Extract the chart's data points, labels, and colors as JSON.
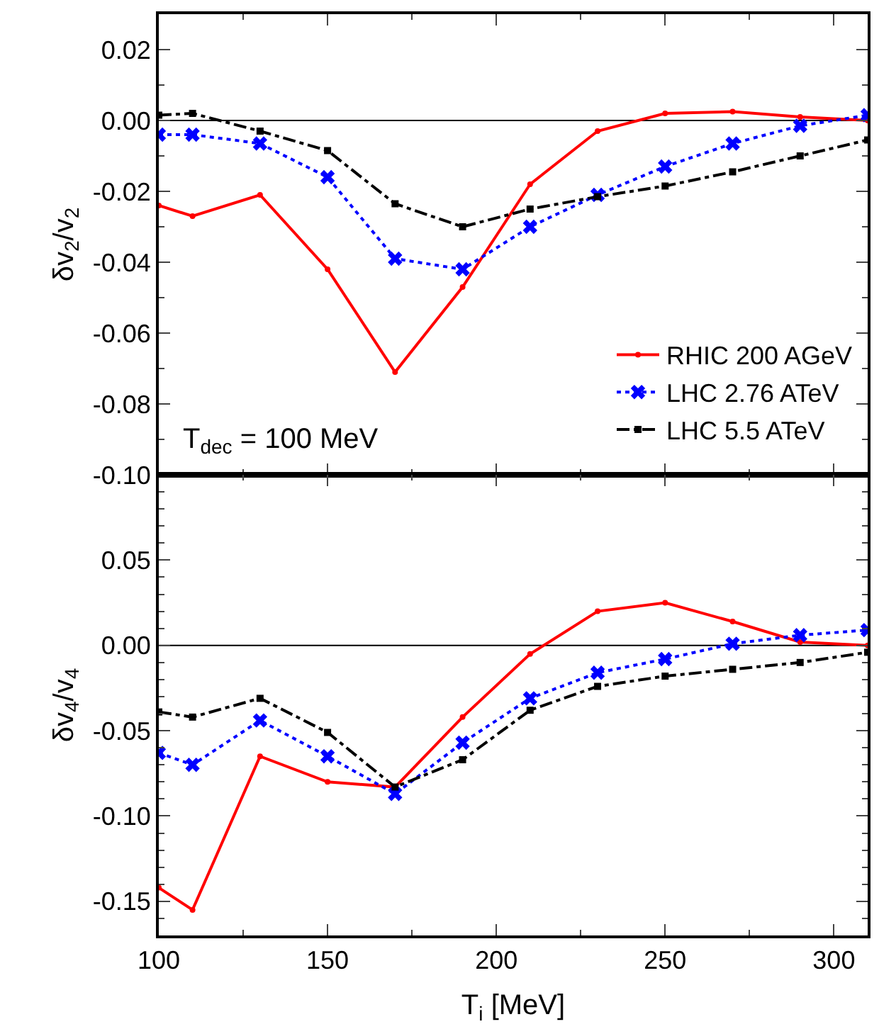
{
  "chart_data": [
    {
      "type": "line",
      "ylabel": "δv$_{2}$/v$_{2}$",
      "x": [
        100,
        110,
        130,
        150,
        170,
        190,
        210,
        230,
        250,
        270,
        290,
        310
      ],
      "xlim": [
        100,
        310
      ],
      "xticks": [
        100,
        150,
        200,
        250,
        300
      ],
      "ylim": [
        -0.1,
        0.03
      ],
      "yticks": [
        {
          "value": -0.1,
          "label": "-0.10"
        },
        {
          "value": -0.08,
          "label": "-0.08"
        },
        {
          "value": -0.06,
          "label": "-0.06"
        },
        {
          "value": -0.04,
          "label": "-0.04"
        },
        {
          "value": -0.02,
          "label": "-0.02"
        },
        {
          "value": 0,
          "label": "0.00"
        },
        {
          "value": 0.02,
          "label": "0.02"
        }
      ],
      "tick_labels": "y",
      "grid": false,
      "legend": "bottom right",
      "ref_lines": [
        {
          "axis": "y",
          "value": 0,
          "color": "#000000"
        }
      ],
      "annotations": [
        "T$_{dec}$ = 100 MeV"
      ],
      "series": [
        {
          "name": "RHIC 200 AGeV",
          "color": "#ff0000",
          "marker": "circle",
          "line_style": "solid",
          "values": [
            -0.024,
            -0.027,
            -0.021,
            -0.042,
            -0.071,
            -0.047,
            -0.018,
            -0.003,
            0.002,
            0.0025,
            0.001,
            0.0
          ]
        },
        {
          "name": "LHC 2.76 ATeV",
          "color": "#0000ff",
          "marker": "cross",
          "line_style": "dotted",
          "values": [
            -0.004,
            -0.004,
            -0.0065,
            -0.016,
            -0.039,
            -0.042,
            -0.03,
            -0.021,
            -0.013,
            -0.0065,
            -0.0015,
            0.0015
          ]
        },
        {
          "name": "LHC 5.5 ATeV",
          "color": "#000000",
          "marker": "square",
          "line_style": "dashed",
          "values": [
            0.0015,
            0.002,
            -0.003,
            -0.0085,
            -0.0235,
            -0.03,
            -0.025,
            -0.0215,
            -0.0185,
            -0.0145,
            -0.01,
            -0.0055
          ]
        }
      ]
    },
    {
      "type": "line",
      "xlabel": "T$_{i}$ [MeV]",
      "ylabel": "δv$_{4}$/v$_{4}$",
      "x": [
        100,
        110,
        130,
        150,
        170,
        190,
        210,
        230,
        250,
        270,
        290,
        310
      ],
      "xlim": [
        100,
        310
      ],
      "xticks": [
        100,
        150,
        200,
        250,
        300
      ],
      "ylim": [
        -0.17,
        0.1
      ],
      "yticks": [
        {
          "value": -0.15,
          "label": "-0.15"
        },
        {
          "value": -0.1,
          "label": "-0.10"
        },
        {
          "value": -0.05,
          "label": "-0.05"
        },
        {
          "value": 0,
          "label": "0.00"
        },
        {
          "value": 0.05,
          "label": "0.05"
        }
      ],
      "grid": false,
      "ref_lines": [
        {
          "axis": "y",
          "value": 0,
          "color": "#000000"
        }
      ],
      "series": [
        {
          "color": "#ff0000",
          "marker": "circle",
          "line_style": "solid",
          "values": [
            -0.142,
            -0.155,
            -0.065,
            -0.08,
            -0.083,
            -0.042,
            -0.005,
            0.02,
            0.025,
            0.014,
            0.002,
            0.0
          ]
        },
        {
          "color": "#0000ff",
          "marker": "cross",
          "line_style": "dotted",
          "values": [
            -0.063,
            -0.07,
            -0.044,
            -0.065,
            -0.087,
            -0.057,
            -0.031,
            -0.016,
            -0.008,
            0.001,
            0.006,
            0.009
          ]
        },
        {
          "color": "#000000",
          "marker": "square",
          "line_style": "dashed",
          "values": [
            -0.039,
            -0.042,
            -0.031,
            -0.051,
            -0.083,
            -0.067,
            -0.038,
            -0.024,
            -0.018,
            -0.014,
            -0.01,
            -0.004
          ]
        }
      ]
    }
  ]
}
